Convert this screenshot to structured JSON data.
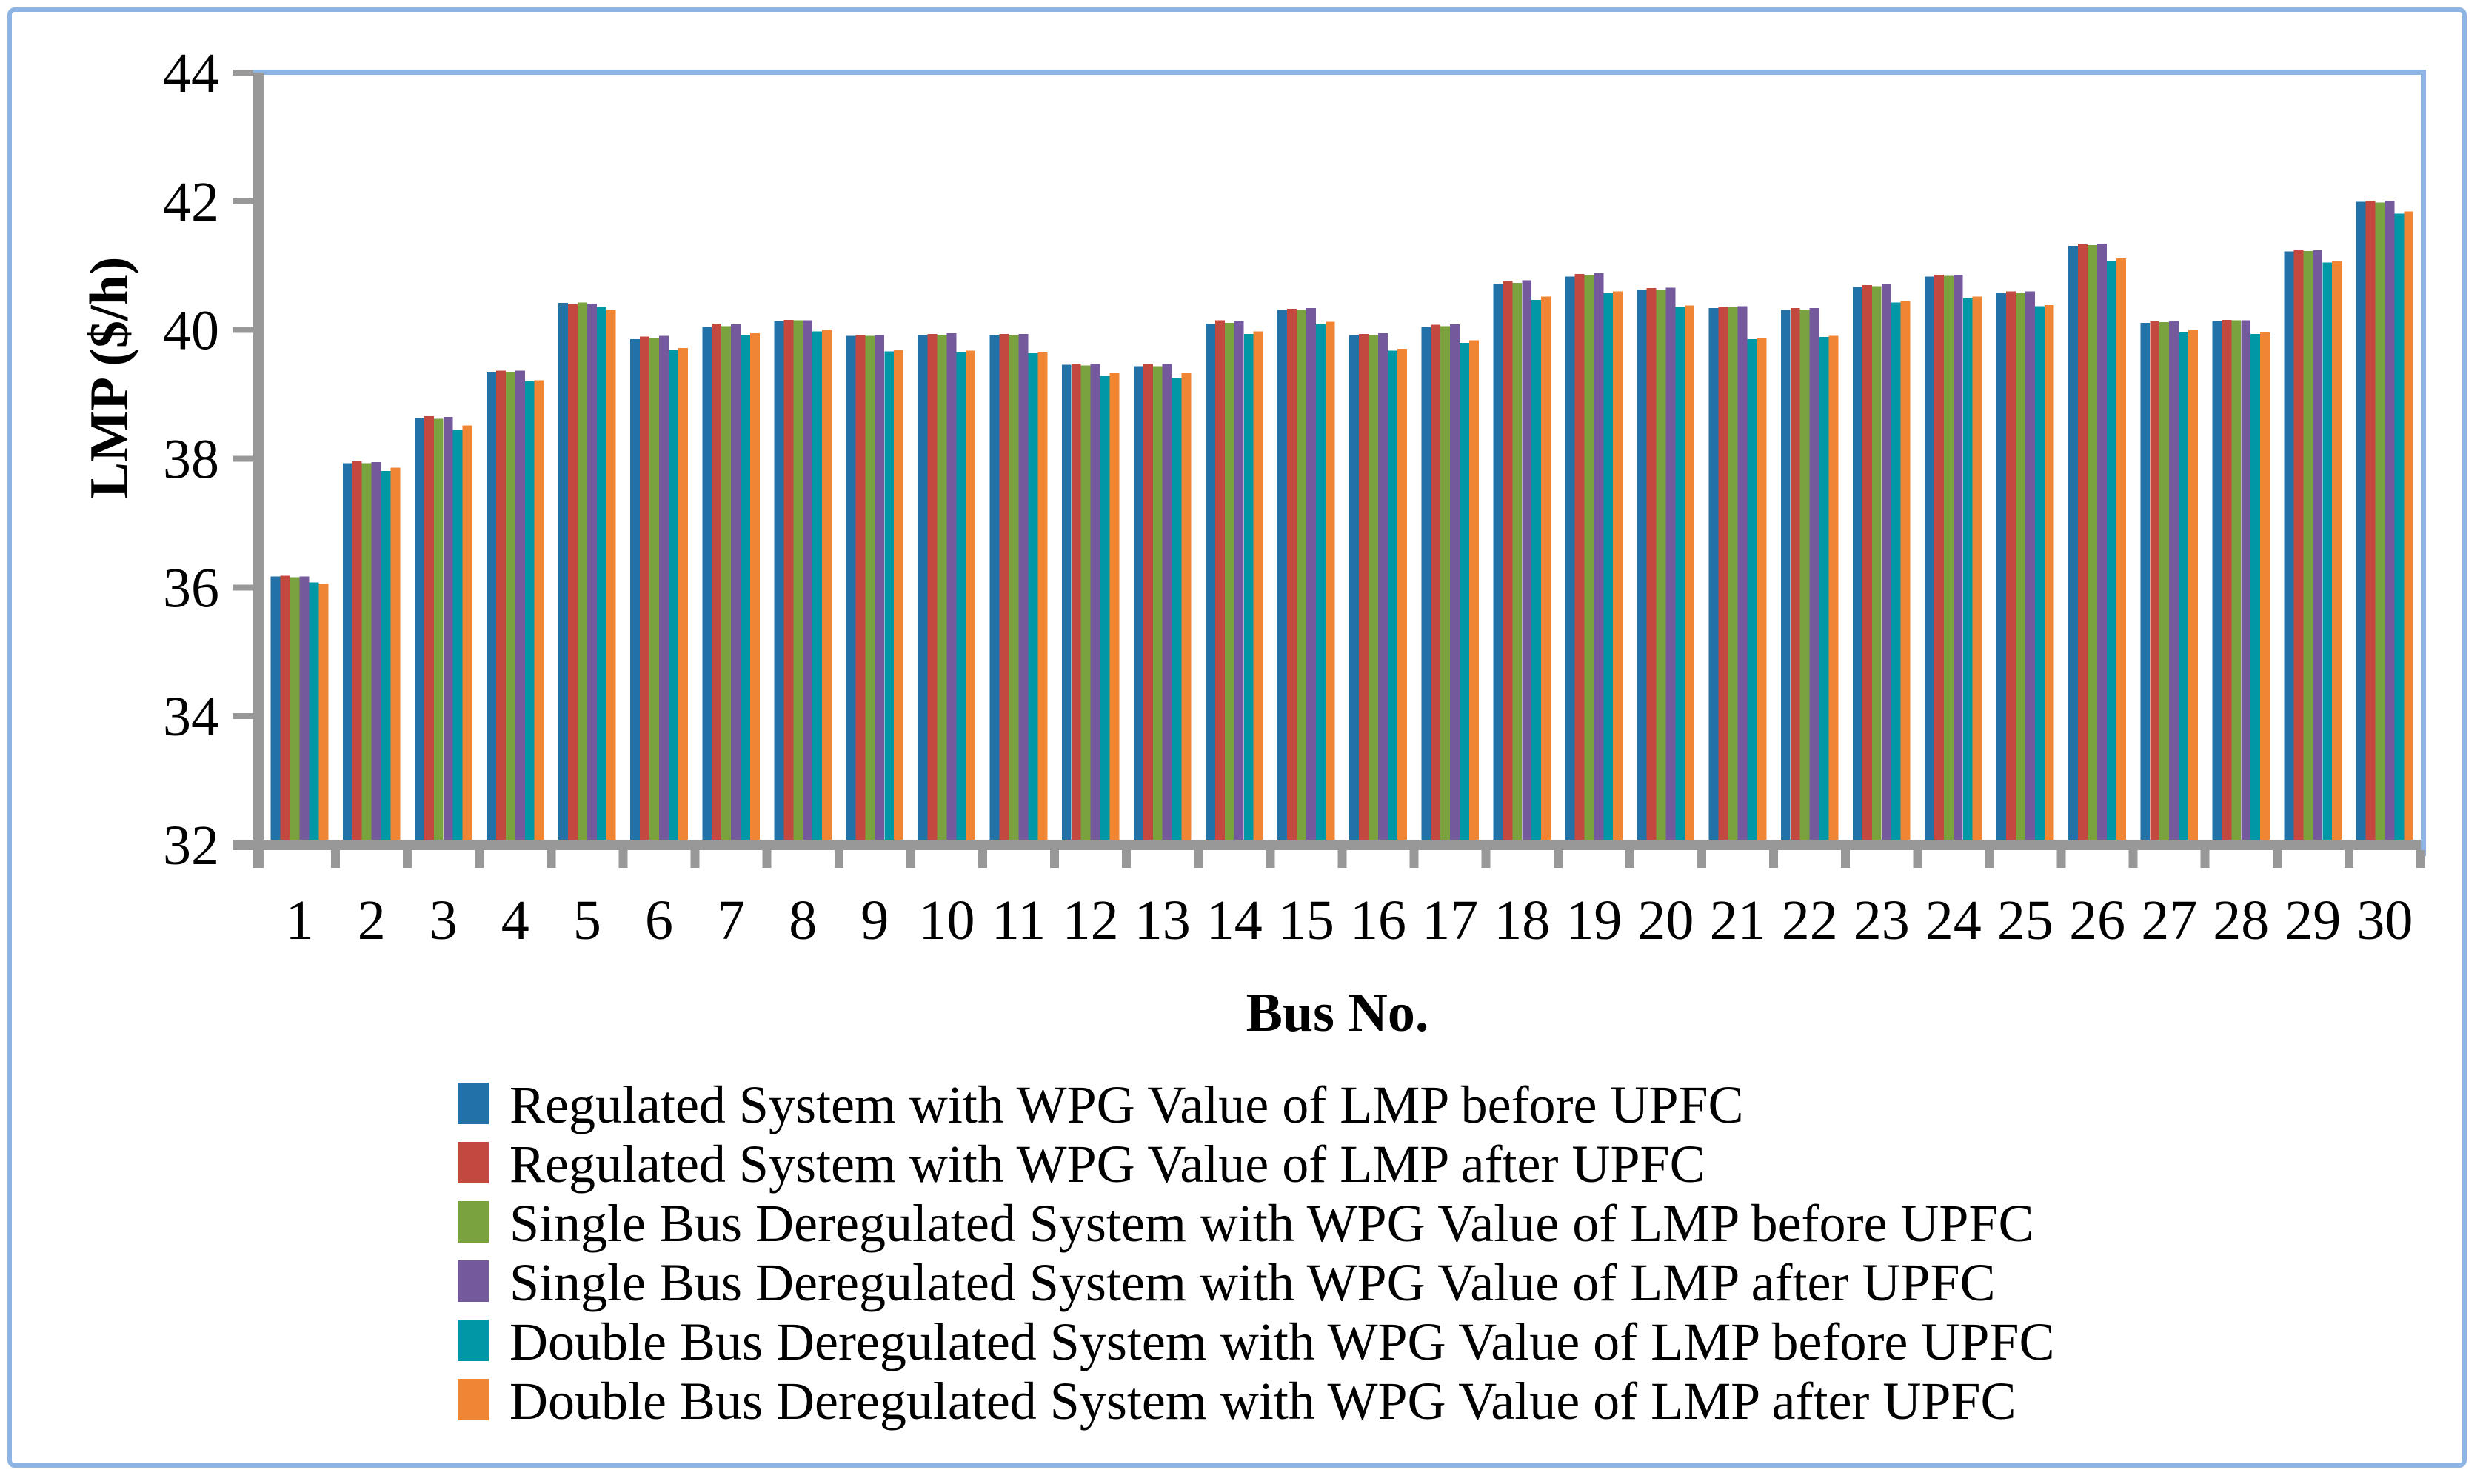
{
  "chart_data": {
    "type": "bar",
    "title": "",
    "xlabel": "Bus No.",
    "ylabel": "LMP ($/h)",
    "ylim": [
      32,
      44
    ],
    "yticks": [
      32,
      34,
      36,
      38,
      40,
      42,
      44
    ],
    "categories": [
      "1",
      "2",
      "3",
      "4",
      "5",
      "6",
      "7",
      "8",
      "9",
      "10",
      "11",
      "12",
      "13",
      "14",
      "15",
      "16",
      "17",
      "18",
      "19",
      "20",
      "21",
      "22",
      "23",
      "24",
      "25",
      "26",
      "27",
      "28",
      "29",
      "30"
    ],
    "series": [
      {
        "name": "Regulated System with WPG Value of LMP before UPFC",
        "color": "#2272A8",
        "values": [
          36.17,
          37.93,
          38.63,
          39.34,
          40.42,
          39.86,
          40.05,
          40.14,
          39.91,
          39.92,
          39.92,
          39.46,
          39.44,
          40.1,
          40.31,
          39.92,
          40.05,
          40.72,
          40.83,
          40.63,
          40.34,
          40.31,
          40.67,
          40.83,
          40.57,
          41.31,
          40.11,
          40.14,
          41.22,
          41.99
        ]
      },
      {
        "name": "Regulated System with WPG Value of LMP after UPFC",
        "color": "#C3483F",
        "values": [
          36.18,
          37.96,
          38.66,
          39.37,
          40.4,
          39.9,
          40.1,
          40.16,
          39.92,
          39.94,
          39.94,
          39.48,
          39.47,
          40.15,
          40.33,
          39.94,
          40.08,
          40.76,
          40.87,
          40.65,
          40.36,
          40.34,
          40.7,
          40.86,
          40.6,
          41.33,
          40.14,
          40.16,
          41.24,
          42.01
        ]
      },
      {
        "name": "Single Bus Deregulated System with WPG Value of LMP before UPFC",
        "color": "#7AA23F",
        "values": [
          36.16,
          37.93,
          38.62,
          39.35,
          40.43,
          39.88,
          40.06,
          40.15,
          39.91,
          39.93,
          39.92,
          39.45,
          39.44,
          40.11,
          40.31,
          39.92,
          40.06,
          40.73,
          40.85,
          40.63,
          40.35,
          40.32,
          40.68,
          40.84,
          40.58,
          41.32,
          40.12,
          40.15,
          41.23,
          41.98
        ]
      },
      {
        "name": "Single Bus Deregulated System with WPG Value of LMP after UPFC",
        "color": "#74599C",
        "values": [
          36.17,
          37.95,
          38.65,
          39.37,
          40.41,
          39.91,
          40.09,
          40.15,
          39.92,
          39.95,
          39.94,
          39.47,
          39.47,
          40.14,
          40.34,
          39.95,
          40.09,
          40.77,
          40.88,
          40.66,
          40.37,
          40.34,
          40.71,
          40.86,
          40.6,
          41.34,
          40.14,
          40.15,
          41.24,
          42.01
        ]
      },
      {
        "name": "Double Bus Deregulated System with WPG Value of LMP before UPFC",
        "color": "#0097A7",
        "values": [
          36.08,
          37.81,
          38.45,
          39.2,
          40.36,
          39.69,
          39.92,
          39.98,
          39.67,
          39.65,
          39.64,
          39.28,
          39.26,
          39.94,
          40.09,
          39.68,
          39.8,
          40.47,
          40.57,
          40.36,
          39.86,
          39.89,
          40.43,
          40.49,
          40.37,
          41.08,
          39.97,
          39.94,
          41.05,
          41.81
        ]
      },
      {
        "name": "Double Bus Deregulated System with WPG Value of LMP after UPFC",
        "color": "#F08534",
        "values": [
          36.06,
          37.86,
          38.52,
          39.22,
          40.32,
          39.72,
          39.95,
          40.01,
          39.69,
          39.68,
          39.66,
          39.33,
          39.33,
          39.98,
          40.13,
          39.71,
          39.84,
          40.52,
          40.6,
          40.38,
          39.88,
          39.91,
          40.45,
          40.52,
          40.39,
          41.11,
          40.0,
          39.96,
          41.07,
          41.84
        ]
      }
    ],
    "legend_position": "bottom",
    "grid": false,
    "colors": {
      "axis": "#989898",
      "frame": "#8EB4E3",
      "background": "#FFFFFF",
      "text": "#000000"
    }
  }
}
